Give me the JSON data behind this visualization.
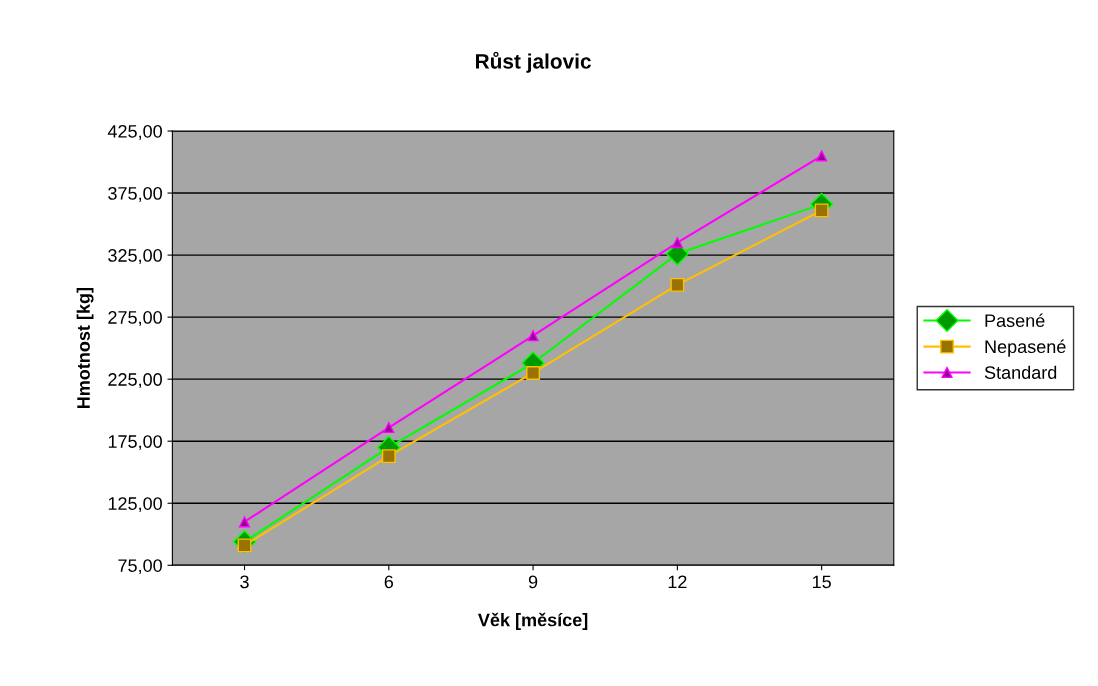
{
  "chart_data": {
    "type": "line",
    "title": "Růst jalovic",
    "xlabel": "Věk [měsíce]",
    "ylabel": "Hmotnost [kg]",
    "categories": [
      "3",
      "6",
      "9",
      "12",
      "15"
    ],
    "series": [
      {
        "name": "Pasené",
        "color": "#00ff00",
        "marker": "diamond",
        "values": [
          94,
          170,
          238,
          326,
          366
        ]
      },
      {
        "name": "Nepasené",
        "color": "#ffc000",
        "marker": "square",
        "values": [
          91,
          163,
          230,
          301,
          361
        ]
      },
      {
        "name": "Standard",
        "color": "#ff00ff",
        "marker": "triangle",
        "values": [
          110,
          186,
          260,
          335,
          405
        ]
      }
    ],
    "ylim": [
      75,
      425
    ],
    "yticks": [
      {
        "value": 75,
        "label": "75,00"
      },
      {
        "value": 125,
        "label": "125,00"
      },
      {
        "value": 175,
        "label": "175,00"
      },
      {
        "value": 225,
        "label": "225,00"
      },
      {
        "value": 275,
        "label": "275,00"
      },
      {
        "value": 325,
        "label": "325,00"
      },
      {
        "value": 375,
        "label": "375,00"
      },
      {
        "value": 425,
        "label": "425,00"
      }
    ],
    "grid": "y",
    "legend": "right",
    "line_style": "solid"
  }
}
